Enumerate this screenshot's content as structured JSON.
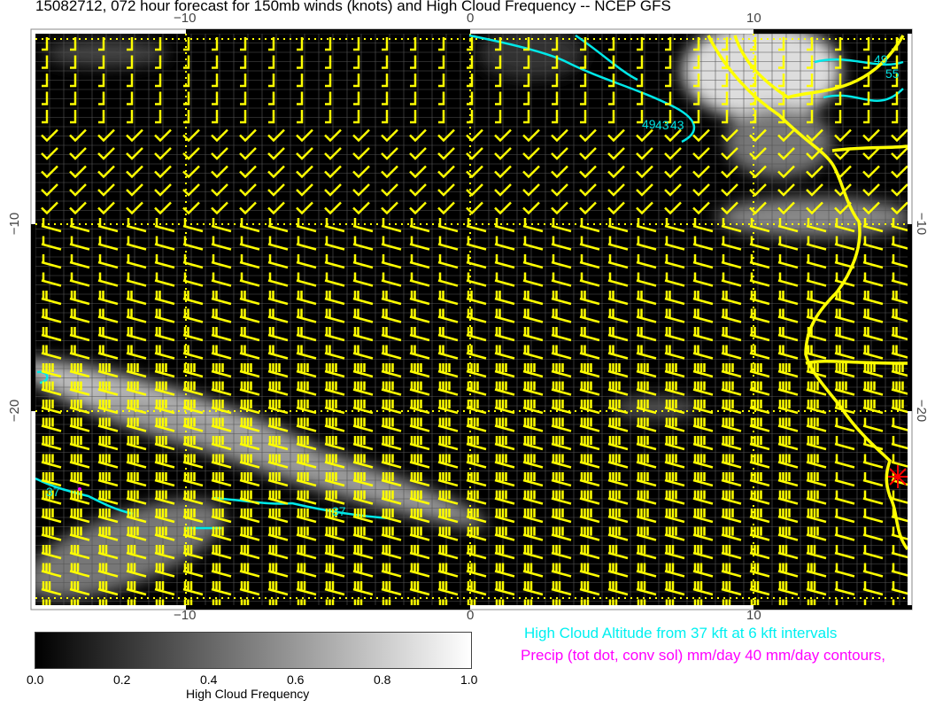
{
  "title": "15082712, 072 hour forecast for 150mb winds (knots) and High Cloud Frequency -- NCEP GFS",
  "map": {
    "lon_ticks": [
      "−10",
      "0",
      "10"
    ],
    "lat_ticks": [
      "−10",
      "−20"
    ],
    "contour_labels": [
      "49",
      "43",
      "43",
      "49",
      "55",
      "37",
      "37"
    ],
    "colors": {
      "wind_barbs": "#ffff00",
      "coastline": "#ffff00",
      "altitude_contours": "#00ffff",
      "precip": "#ff00ff",
      "marker": "#ff0000",
      "background": "#000000"
    }
  },
  "colorbar": {
    "label": "High Cloud Frequency",
    "ticks": [
      "0.0",
      "0.2",
      "0.4",
      "0.6",
      "0.8",
      "1.0"
    ],
    "range": [
      0.0,
      1.0
    ],
    "colors": [
      "#000000",
      "#ffffff"
    ]
  },
  "legend": {
    "altitude": "High Cloud Altitude from 37 kft at 6 kft intervals",
    "precip": "Precip (tot dot, conv sol) mm/day 40 mm/day contours,"
  }
}
